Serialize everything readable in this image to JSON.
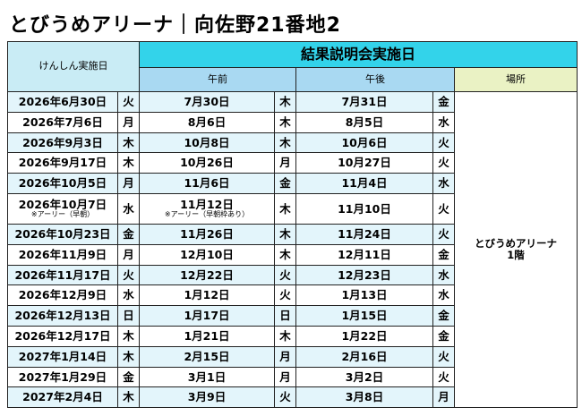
{
  "title": "とびうめアリーナ｜向佐野21番地2",
  "table": {
    "header": {
      "kenshin": "けんしん実施日",
      "group": "結果説明会実施日",
      "am": "午前",
      "pm": "午後",
      "place": "場所"
    },
    "place": [
      "とびうめアリーナ",
      "1階"
    ],
    "rows": [
      {
        "date": "2026年6月30日",
        "day": "火",
        "am": "7月30日",
        "am_day": "木",
        "pm": "7月31日",
        "pm_day": "金"
      },
      {
        "date": "2026年7月6日",
        "day": "月",
        "am": "8月6日",
        "am_day": "木",
        "pm": "8月5日",
        "pm_day": "水"
      },
      {
        "date": "2026年9月3日",
        "day": "木",
        "am": "10月8日",
        "am_day": "木",
        "pm": "10月6日",
        "pm_day": "火"
      },
      {
        "date": "2026年9月17日",
        "day": "木",
        "am": "10月26日",
        "am_day": "月",
        "pm": "10月27日",
        "pm_day": "火"
      },
      {
        "date": "2026年10月5日",
        "day": "月",
        "am": "11月6日",
        "am_day": "金",
        "pm": "11月4日",
        "pm_day": "水"
      },
      {
        "date": "2026年10月7日",
        "date_note": "※アーリー（早朝）",
        "day": "水",
        "am": "11月12日",
        "am_note": "※アーリー（早朝枠あり）",
        "am_day": "木",
        "pm": "11月10日",
        "pm_day": "火"
      },
      {
        "date": "2026年10月23日",
        "day": "金",
        "am": "11月26日",
        "am_day": "木",
        "pm": "11月24日",
        "pm_day": "火"
      },
      {
        "date": "2026年11月9日",
        "day": "月",
        "am": "12月10日",
        "am_day": "木",
        "pm": "12月11日",
        "pm_day": "金"
      },
      {
        "date": "2026年11月17日",
        "day": "火",
        "am": "12月22日",
        "am_day": "火",
        "pm": "12月23日",
        "pm_day": "水"
      },
      {
        "date": "2026年12月9日",
        "day": "水",
        "am": "1月12日",
        "am_day": "火",
        "pm": "1月13日",
        "pm_day": "水"
      },
      {
        "date": "2026年12月13日",
        "day": "日",
        "am": "1月17日",
        "am_day": "日",
        "pm": "1月15日",
        "pm_day": "金"
      },
      {
        "date": "2026年12月17日",
        "day": "木",
        "am": "1月21日",
        "am_day": "木",
        "pm": "1月22日",
        "pm_day": "金"
      },
      {
        "date": "2027年1月14日",
        "day": "木",
        "am": "2月15日",
        "am_day": "月",
        "pm": "2月16日",
        "pm_day": "火"
      },
      {
        "date": "2027年1月29日",
        "day": "金",
        "am": "3月1日",
        "am_day": "月",
        "pm": "3月2日",
        "pm_day": "火"
      },
      {
        "date": "2027年2月4日",
        "day": "木",
        "am": "3月9日",
        "am_day": "火",
        "pm": "3月8日",
        "pm_day": "月"
      }
    ]
  }
}
